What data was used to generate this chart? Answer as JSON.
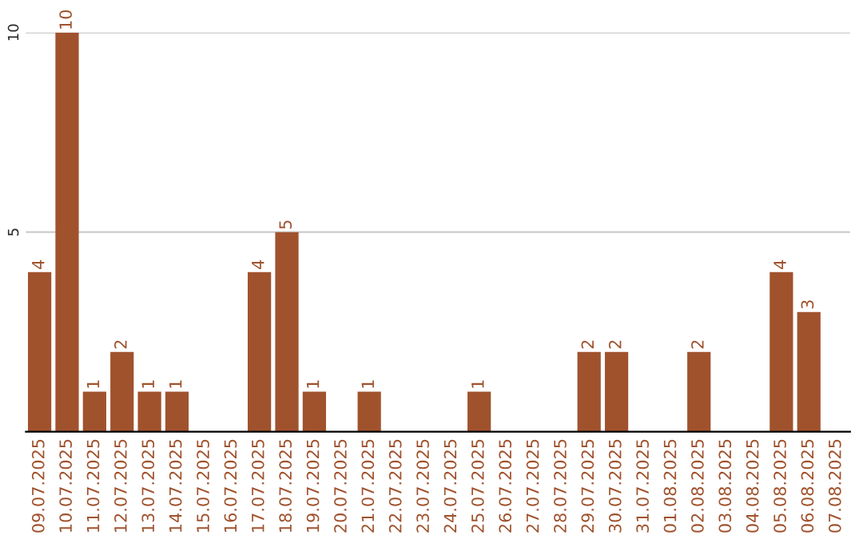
{
  "chart_data": {
    "type": "bar",
    "categories": [
      "09.07.2025",
      "10.07.2025",
      "11.07.2025",
      "12.07.2025",
      "13.07.2025",
      "14.07.2025",
      "15.07.2025",
      "16.07.2025",
      "17.07.2025",
      "18.07.2025",
      "19.07.2025",
      "20.07.2025",
      "21.07.2025",
      "22.07.2025",
      "23.07.2025",
      "24.07.2025",
      "25.07.2025",
      "26.07.2025",
      "27.07.2025",
      "28.07.2025",
      "29.07.2025",
      "30.07.2025",
      "31.07.2025",
      "01.08.2025",
      "02.08.2025",
      "03.08.2025",
      "04.08.2025",
      "05.08.2025",
      "06.08.2025",
      "07.08.2025"
    ],
    "values": [
      4,
      10,
      1,
      2,
      1,
      1,
      0,
      0,
      4,
      5,
      1,
      0,
      1,
      0,
      0,
      0,
      1,
      0,
      0,
      0,
      2,
      2,
      0,
      0,
      2,
      0,
      0,
      4,
      3,
      0
    ],
    "value_labels": [
      "4",
      "10",
      "1",
      "2",
      "1",
      "1",
      null,
      null,
      "4",
      "5",
      "1",
      null,
      "1",
      null,
      null,
      null,
      "1",
      null,
      null,
      null,
      "2",
      "2",
      null,
      null,
      "2",
      null,
      null,
      "4",
      "3",
      null
    ],
    "color": "#a0522d",
    "ylim": [
      0,
      10
    ],
    "yticks": [
      5,
      10
    ],
    "grid": "y",
    "legend": false
  }
}
